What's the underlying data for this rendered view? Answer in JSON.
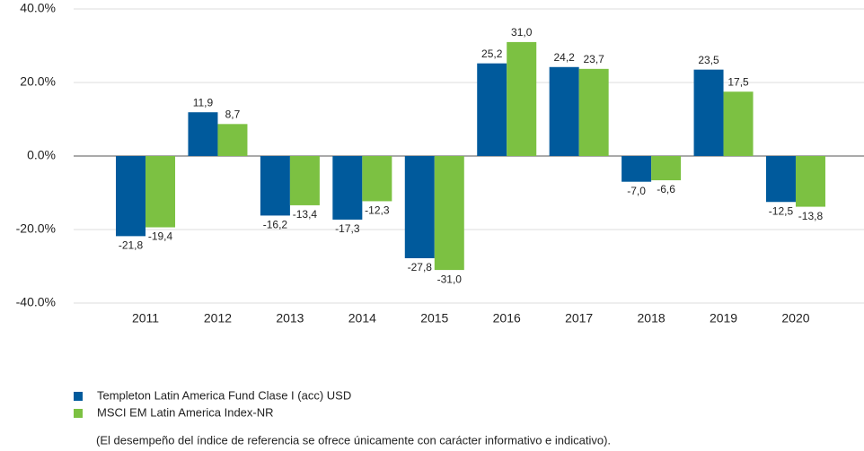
{
  "chart_data": {
    "type": "bar",
    "categories": [
      "2011",
      "2012",
      "2013",
      "2014",
      "2015",
      "2016",
      "2017",
      "2018",
      "2019",
      "2020"
    ],
    "series": [
      {
        "name": "Templeton Latin America Fund Clase I (acc) USD",
        "color": "#005a9c",
        "values": [
          -21.8,
          11.9,
          -16.2,
          -17.3,
          -27.8,
          25.2,
          24.2,
          -7.0,
          23.5,
          -12.5
        ],
        "value_labels": [
          "-21,8",
          "11,9",
          "-16,2",
          "-17,3",
          "-27,8",
          "25,2",
          "24,2",
          "-7,0",
          "23,5",
          "-12,5"
        ]
      },
      {
        "name": "MSCI EM Latin America Index-NR",
        "color": "#7cc142",
        "values": [
          -19.4,
          8.7,
          -13.4,
          -12.3,
          -31.0,
          31.0,
          23.7,
          -6.6,
          17.5,
          -13.8
        ],
        "value_labels": [
          "-19,4",
          "8,7",
          "-13,4",
          "-12,3",
          "-31,0",
          "31,0",
          "23,7",
          "-6,6",
          "17,5",
          "-13,8"
        ]
      }
    ],
    "ylim": [
      -40,
      40
    ],
    "yticks": [
      {
        "value": -40,
        "label": "-40.0%"
      },
      {
        "value": -20,
        "label": "-20.0%"
      },
      {
        "value": 0,
        "label": "0.0%"
      },
      {
        "value": 20,
        "label": "20.0%"
      },
      {
        "value": 40,
        "label": "40.0%"
      }
    ],
    "grid": true,
    "footnote": "(El desempeño del índice de referencia se ofrece únicamente con carácter informativo e indicativo)."
  }
}
